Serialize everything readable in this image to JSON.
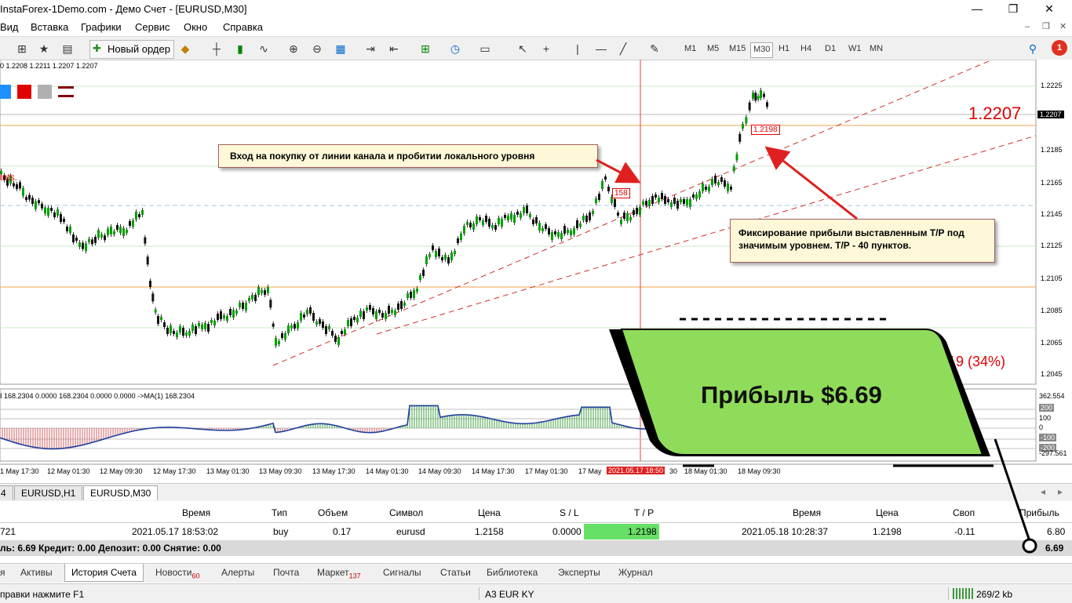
{
  "window": {
    "title": "InstaForex-1Demo.com - Демо Счет - [EURUSD,M30]",
    "minimize": "—",
    "maximize": "❐",
    "close": "✕"
  },
  "menu": [
    "Вид",
    "Вставка",
    "Графики",
    "Сервис",
    "Окно",
    "Справка"
  ],
  "toolbar": {
    "new_order_label": "Новый ордер",
    "timeframes": [
      "M1",
      "M5",
      "M15",
      "M30",
      "H1",
      "H4",
      "D1",
      "W1",
      "MN"
    ],
    "active_timeframe": "M30",
    "notification_count": "1"
  },
  "chart": {
    "ohlc_header": "0  1.2208 1.2211 1.2207 1.2207",
    "points_label": "ints.",
    "price_levels": [
      "1.2225",
      "1.2205",
      "1.2185",
      "1.2165",
      "1.2145",
      "1.2125",
      "1.2105",
      "1.2085",
      "1.2065",
      "1.2045"
    ],
    "current_price_tag": "1.2207",
    "big_price_label": "1.2207",
    "entry_tag": "158",
    "tp_tag": "1.2198",
    "partial_label": "019 (34%)",
    "annotation_entry": "Вход на покупку от линии канала и пробитии локального уровня",
    "annotation_tp": "Фиксирование прибыли выставленным Т/Р под значимым уровнем. Т/Р - 40 пунктов.",
    "profit_banner": "Прибыль $6.69",
    "indicator_header": "I 168.2304 0.0000 168.2304 0.0000 0.0000  ->MA(1) 168.2304",
    "indicator_levels": [
      "362.554",
      "200",
      "100",
      "0",
      "-100",
      "-200",
      "-297.561"
    ],
    "time_labels": [
      "1 May 17:30",
      "12 May 01:30",
      "12 May 09:30",
      "12 May 17:30",
      "13 May 01:30",
      "13 May 09:30",
      "13 May 17:30",
      "14 May 01:30",
      "14 May 09:30",
      "14 May 17:30",
      "17 May 01:30",
      "17 May",
      "2021.05.17 18:50",
      "30",
      "18 May 01:30",
      "18 May 09:30"
    ],
    "colors": {
      "bull": "#00a000",
      "bear": "#c00000",
      "channel": "#d03030",
      "level_orange": "#f0a050",
      "level_green": "#c8e8c8",
      "banner": "#8fdc5a",
      "arrow": "#e02020"
    }
  },
  "chart_tabs": [
    "4",
    "EURUSD,H1",
    "EURUSD,M30"
  ],
  "chart_tab_active": "EURUSD,M30",
  "terminal": {
    "columns": [
      "Время",
      "Тип",
      "Объем",
      "Символ",
      "Цена",
      "S / L",
      "T / P",
      "Время",
      "Цена",
      "Своп",
      "Прибыль"
    ],
    "row": {
      "ticket": "721",
      "open_time": "2021.05.17 18:53:02",
      "type": "buy",
      "volume": "0.17",
      "symbol": "eurusd",
      "open_price": "1.2158",
      "sl": "0.0000",
      "tp": "1.2198",
      "close_time": "2021.05.18 10:28:37",
      "close_price": "1.2198",
      "swap": "-0.11",
      "profit": "6.80"
    },
    "summary": "ль: 6.69  Кредит: 0.00  Депозит: 0.00  Снятие: 0.00",
    "summary_total": "6.69"
  },
  "bottom_tabs": [
    {
      "label": "я",
      "badge": ""
    },
    {
      "label": "Активы",
      "badge": ""
    },
    {
      "label": "История Счета",
      "badge": ""
    },
    {
      "label": "Новости",
      "badge": "60"
    },
    {
      "label": "Алерты",
      "badge": ""
    },
    {
      "label": "Почта",
      "badge": ""
    },
    {
      "label": "Маркет",
      "badge": "137"
    },
    {
      "label": "Сигналы",
      "badge": ""
    },
    {
      "label": "Статьи",
      "badge": ""
    },
    {
      "label": "Библиотека",
      "badge": ""
    },
    {
      "label": "Эксперты",
      "badge": ""
    },
    {
      "label": "Журнал",
      "badge": ""
    }
  ],
  "statusbar": {
    "help": "правки нажмите F1",
    "profile": "A3 EUR KY",
    "traffic": "269/2 kb"
  }
}
